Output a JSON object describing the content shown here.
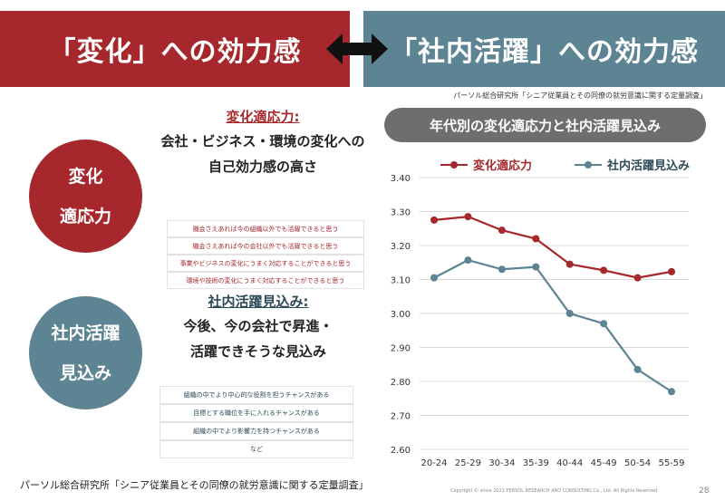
{
  "banner": {
    "left_title": "「変化」への効力感",
    "right_title": "「社内活躍」への効力感"
  },
  "source_top": "パーソル総合研究所「シニア従業員とその同僚の就労意識に関する定量調査」",
  "henka": {
    "circle": [
      "変化",
      "適応力"
    ],
    "def_title": "変化適応力:",
    "def_lines": [
      "会社・ビジネス・環境の変化への",
      "自己効力感の高さ"
    ],
    "items": [
      "機会さえあれば今の組織以外でも活躍できると思う",
      "機会さえあれば今の会社以外でも活躍できると思う",
      "事業やビジネスの変化にうまく対応することができると思う",
      "環境や技術の変化にうまく対応することができると思う"
    ]
  },
  "shanai": {
    "circle": [
      "社内活躍",
      "見込み"
    ],
    "def_title": "社内活躍見込み:",
    "def_lines": [
      "今後、今の会社で昇進・",
      "活躍できそうな見込み"
    ],
    "items": [
      "組織の中でより中心的な役割を担うチャンスがある",
      "目標とする職位を手に入れるチャンスがある",
      "組織の中でより影響力を持つチャンスがある",
      "など"
    ]
  },
  "source_bottom": "パーソル総合研究所「シニア従業員とその同僚の就労意識に関する定量調査」",
  "copyright": "Copyright © since 2021 PERSOL RESEARCH AND CONSULTING Co., Ltd. All Rights Reserved.",
  "page_number": "28",
  "chart_data": {
    "type": "line",
    "title": "年代別の変化適応力と社内活躍見込み",
    "categories": [
      "20-24",
      "25-29",
      "30-34",
      "35-39",
      "40-44",
      "45-49",
      "50-54",
      "55-59"
    ],
    "series": [
      {
        "name": "変化適応力",
        "color": "#a6282d",
        "values": [
          3.275,
          3.285,
          3.245,
          3.22,
          3.145,
          3.127,
          3.105,
          3.123
        ]
      },
      {
        "name": "社内活躍見込み",
        "color": "#5c8492",
        "values": [
          3.105,
          3.157,
          3.13,
          3.137,
          3.0,
          2.97,
          2.835,
          2.77
        ]
      }
    ],
    "ylim": [
      2.6,
      3.4
    ],
    "yticks": [
      "3.40",
      "3.30",
      "3.20",
      "3.10",
      "3.00",
      "2.90",
      "2.80",
      "2.70",
      "2.60"
    ],
    "xlabel": "",
    "ylabel": "",
    "grid": true,
    "legend": "top"
  }
}
